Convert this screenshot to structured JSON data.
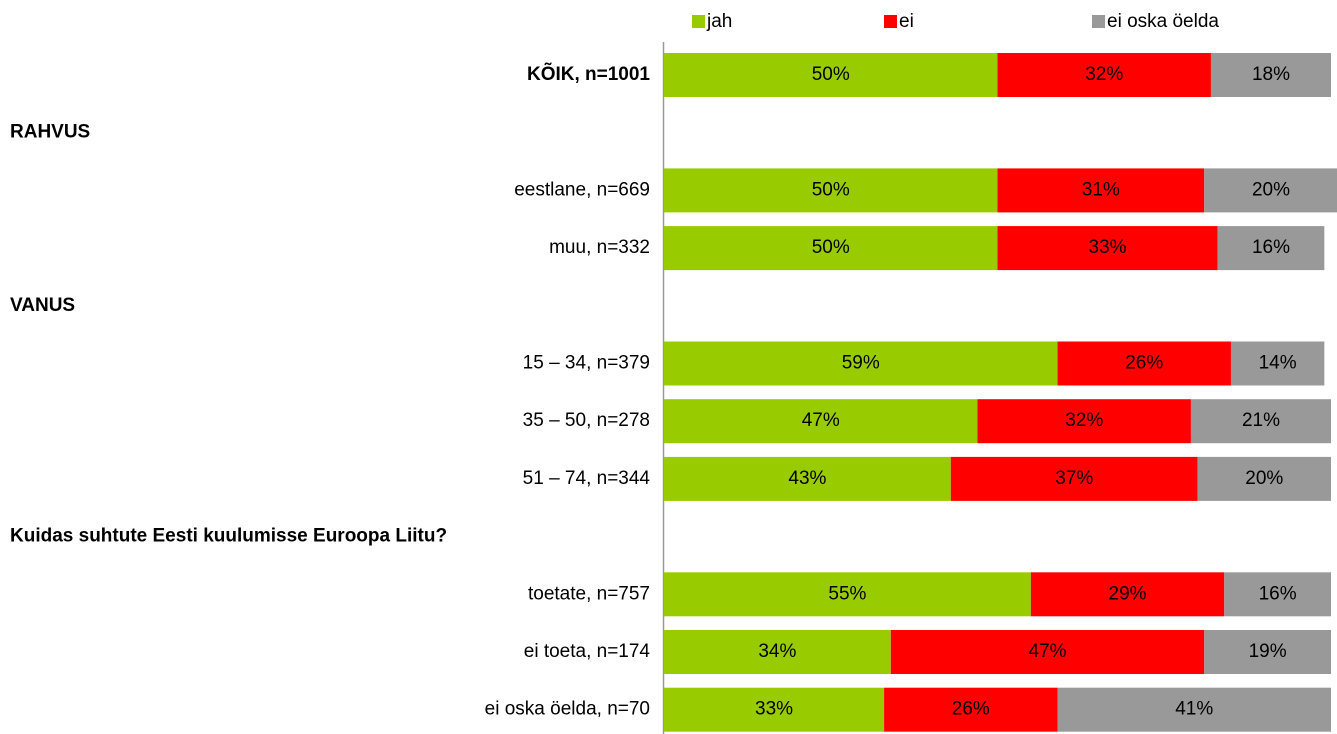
{
  "chart_data": {
    "type": "stacked_barh",
    "categories": [
      "KÕIK, n=1001",
      "RAHVUS",
      "eestlane, n=669",
      "muu, n=332",
      "VANUS",
      "15 – 34, n=379",
      "35 – 50, n=278",
      "51 – 74, n=344",
      "Kuidas suhtute Eesti kuulumisse Euroopa Liitu?",
      "toetate, n=757",
      "ei toeta, n=174",
      "ei oska öelda, n=70"
    ],
    "series": [
      {
        "name": "jah",
        "color": "#99cc00",
        "values": [
          50,
          null,
          50,
          50,
          null,
          59,
          47,
          43,
          null,
          55,
          34,
          33
        ],
        "value_labels": [
          "50%",
          null,
          "50%",
          "50%",
          null,
          "59%",
          "47%",
          "43%",
          null,
          "55%",
          "34%",
          "33%"
        ]
      },
      {
        "name": "ei",
        "color": "#ff0000",
        "values": [
          32,
          null,
          31,
          33,
          null,
          26,
          32,
          37,
          null,
          29,
          47,
          26
        ],
        "value_labels": [
          "32%",
          null,
          "31%",
          "33%",
          null,
          "26%",
          "32%",
          "37%",
          null,
          "29%",
          "47%",
          "26%"
        ]
      },
      {
        "name": "ei oska öelda",
        "color": "#999999",
        "values": [
          18,
          null,
          20,
          16,
          null,
          14,
          21,
          20,
          null,
          16,
          19,
          41
        ],
        "value_labels": [
          "18%",
          null,
          "20%",
          "16%",
          null,
          "14%",
          "21%",
          "20%",
          null,
          "16%",
          "19%",
          "41%"
        ]
      }
    ],
    "xlim": [
      0,
      100
    ]
  }
}
